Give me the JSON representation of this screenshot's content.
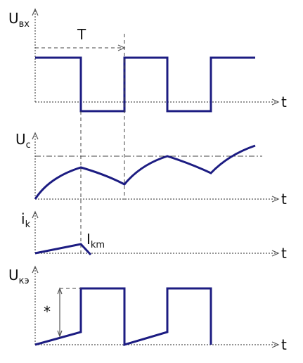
{
  "panels": [
    {
      "label": "U",
      "subscript": "вх",
      "time_label": "t"
    },
    {
      "label": "U",
      "subscript": "c",
      "time_label": "t"
    },
    {
      "label": "i",
      "subscript": "k",
      "time_label": "t"
    },
    {
      "label": "U",
      "subscript": "кэ",
      "time_label": "t"
    }
  ],
  "annotations": {
    "period": "T",
    "peak_label": "I",
    "peak_subscript": "km",
    "marker": "*"
  }
}
